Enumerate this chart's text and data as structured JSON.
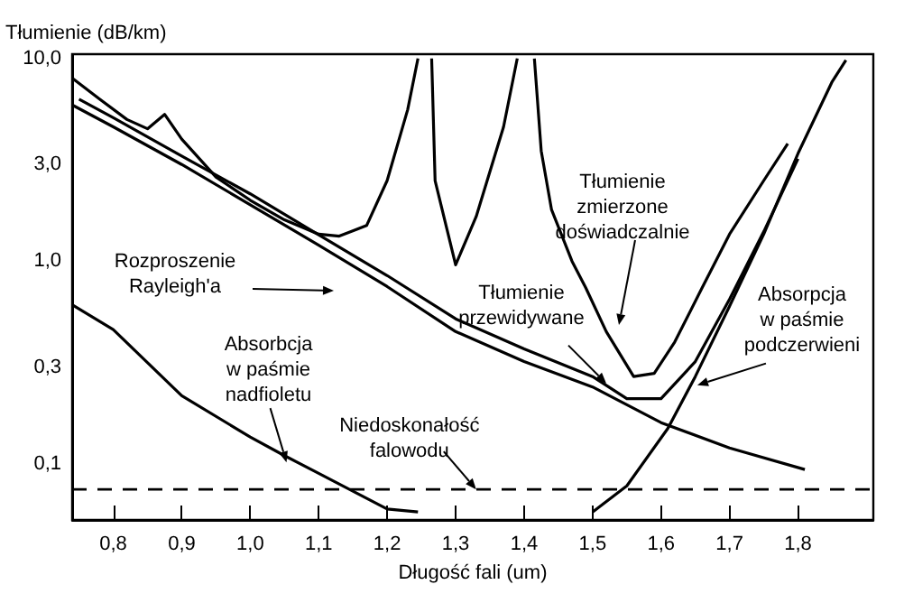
{
  "chart_data": {
    "type": "line",
    "ylabel": "Tłumienie (dB/km)",
    "xlabel": "Długość fali (um)",
    "log": "y",
    "grid": false,
    "marker": "none",
    "xlim": [
      0.74,
      1.91
    ],
    "ylim": [
      0.053,
      10.5
    ],
    "xticks": [
      {
        "value": 0.8,
        "label": "0,8"
      },
      {
        "value": 0.9,
        "label": "0,9"
      },
      {
        "value": 1.0,
        "label": "1,0"
      },
      {
        "value": 1.1,
        "label": "1,1"
      },
      {
        "value": 1.2,
        "label": "1,2"
      },
      {
        "value": 1.3,
        "label": "1,3"
      },
      {
        "value": 1.4,
        "label": "1,4"
      },
      {
        "value": 1.5,
        "label": "1,5"
      },
      {
        "value": 1.6,
        "label": "1,6"
      },
      {
        "value": 1.7,
        "label": "1,7"
      },
      {
        "value": 1.8,
        "label": "1,8"
      }
    ],
    "yticks": [
      {
        "value": 0.1,
        "label": "0,1"
      },
      {
        "value": 0.3,
        "label": "0,3"
      },
      {
        "value": 1,
        "label": "1,0"
      },
      {
        "value": 3,
        "label": "3,0"
      },
      {
        "value": 10,
        "label": "10,0"
      }
    ],
    "series": [
      {
        "color": "#000000",
        "x": [
          0.74,
          0.78,
          0.82,
          0.85,
          0.875,
          0.9,
          0.95,
          1.0,
          1.05,
          1.1,
          1.13,
          1.17,
          1.2,
          1.23,
          1.245,
          1.25,
          1.265,
          1.27,
          1.3,
          1.33,
          1.37,
          1.39,
          1.4,
          1.415,
          1.425,
          1.44,
          1.47,
          1.49,
          1.52,
          1.56,
          1.59,
          1.62,
          1.66,
          1.7,
          1.75,
          1.785
        ],
        "values": [
          8.0,
          6.3,
          5.0,
          4.5,
          5.3,
          4.0,
          2.6,
          2.0,
          1.6,
          1.36,
          1.33,
          1.5,
          2.5,
          5.6,
          10,
          null,
          10,
          2.5,
          0.96,
          1.66,
          4.6,
          10,
          null,
          10,
          3.5,
          1.8,
          1.0,
          0.74,
          0.45,
          0.27,
          0.28,
          0.4,
          0.74,
          1.36,
          2.5,
          3.8
        ]
      },
      {
        "color": "#000000",
        "x": [
          0.75,
          0.8,
          0.9,
          1.0,
          1.1,
          1.2,
          1.3,
          1.4,
          1.5,
          1.55,
          1.6,
          1.65,
          1.7,
          1.75,
          1.8
        ],
        "values": [
          6.3,
          5.1,
          3.3,
          2.15,
          1.35,
          0.85,
          0.52,
          0.37,
          0.27,
          0.21,
          0.21,
          0.32,
          0.65,
          1.4,
          3.2
        ]
      },
      {
        "color": "#000000",
        "x": [
          0.74,
          0.8,
          0.9,
          1.0,
          1.1,
          1.2,
          1.3,
          1.4,
          1.5,
          1.6,
          1.7,
          1.81
        ],
        "values": [
          5.9,
          4.6,
          3.0,
          1.9,
          1.2,
          0.75,
          0.45,
          0.32,
          0.24,
          0.16,
          0.12,
          0.094
        ]
      },
      {
        "color": "#000000",
        "x": [
          0.74,
          0.8,
          0.9,
          1.0,
          1.05,
          1.1,
          1.2,
          1.245
        ],
        "values": [
          0.61,
          0.46,
          0.217,
          0.136,
          0.11,
          0.09,
          0.06,
          0.058
        ]
      },
      {
        "color": "#000000",
        "x": [
          1.5,
          1.55,
          1.61,
          1.65,
          1.7,
          1.75,
          1.8,
          1.85,
          1.87
        ],
        "values": [
          0.058,
          0.078,
          0.15,
          0.27,
          0.6,
          1.36,
          3.4,
          7.7,
          9.8
        ]
      }
    ],
    "ref_lines": [
      {
        "axis": "y",
        "value": 0.075,
        "color": "#000000",
        "line_style": "dashed"
      }
    ],
    "annotations": [
      "Tłumienie\nzmierzone\ndoświadczalnie",
      {
        "text": "Tłumienie\nprzewidywane",
        "x": 1.52,
        "y": 0.25
      },
      "Rozproszenie\nRayleigh'a",
      {
        "text": "Absorpcja\nw paśmie\npodczerwieni",
        "x": 1.653,
        "y": 0.245
      },
      {
        "text": "Absorbcja\nw paśmie\nnadfioletu",
        "x": 1.053,
        "y": 0.102
      },
      {
        "text": "Niedoskonałość\nfalowodu",
        "x": 1.33,
        "y": 0.075
      }
    ]
  }
}
